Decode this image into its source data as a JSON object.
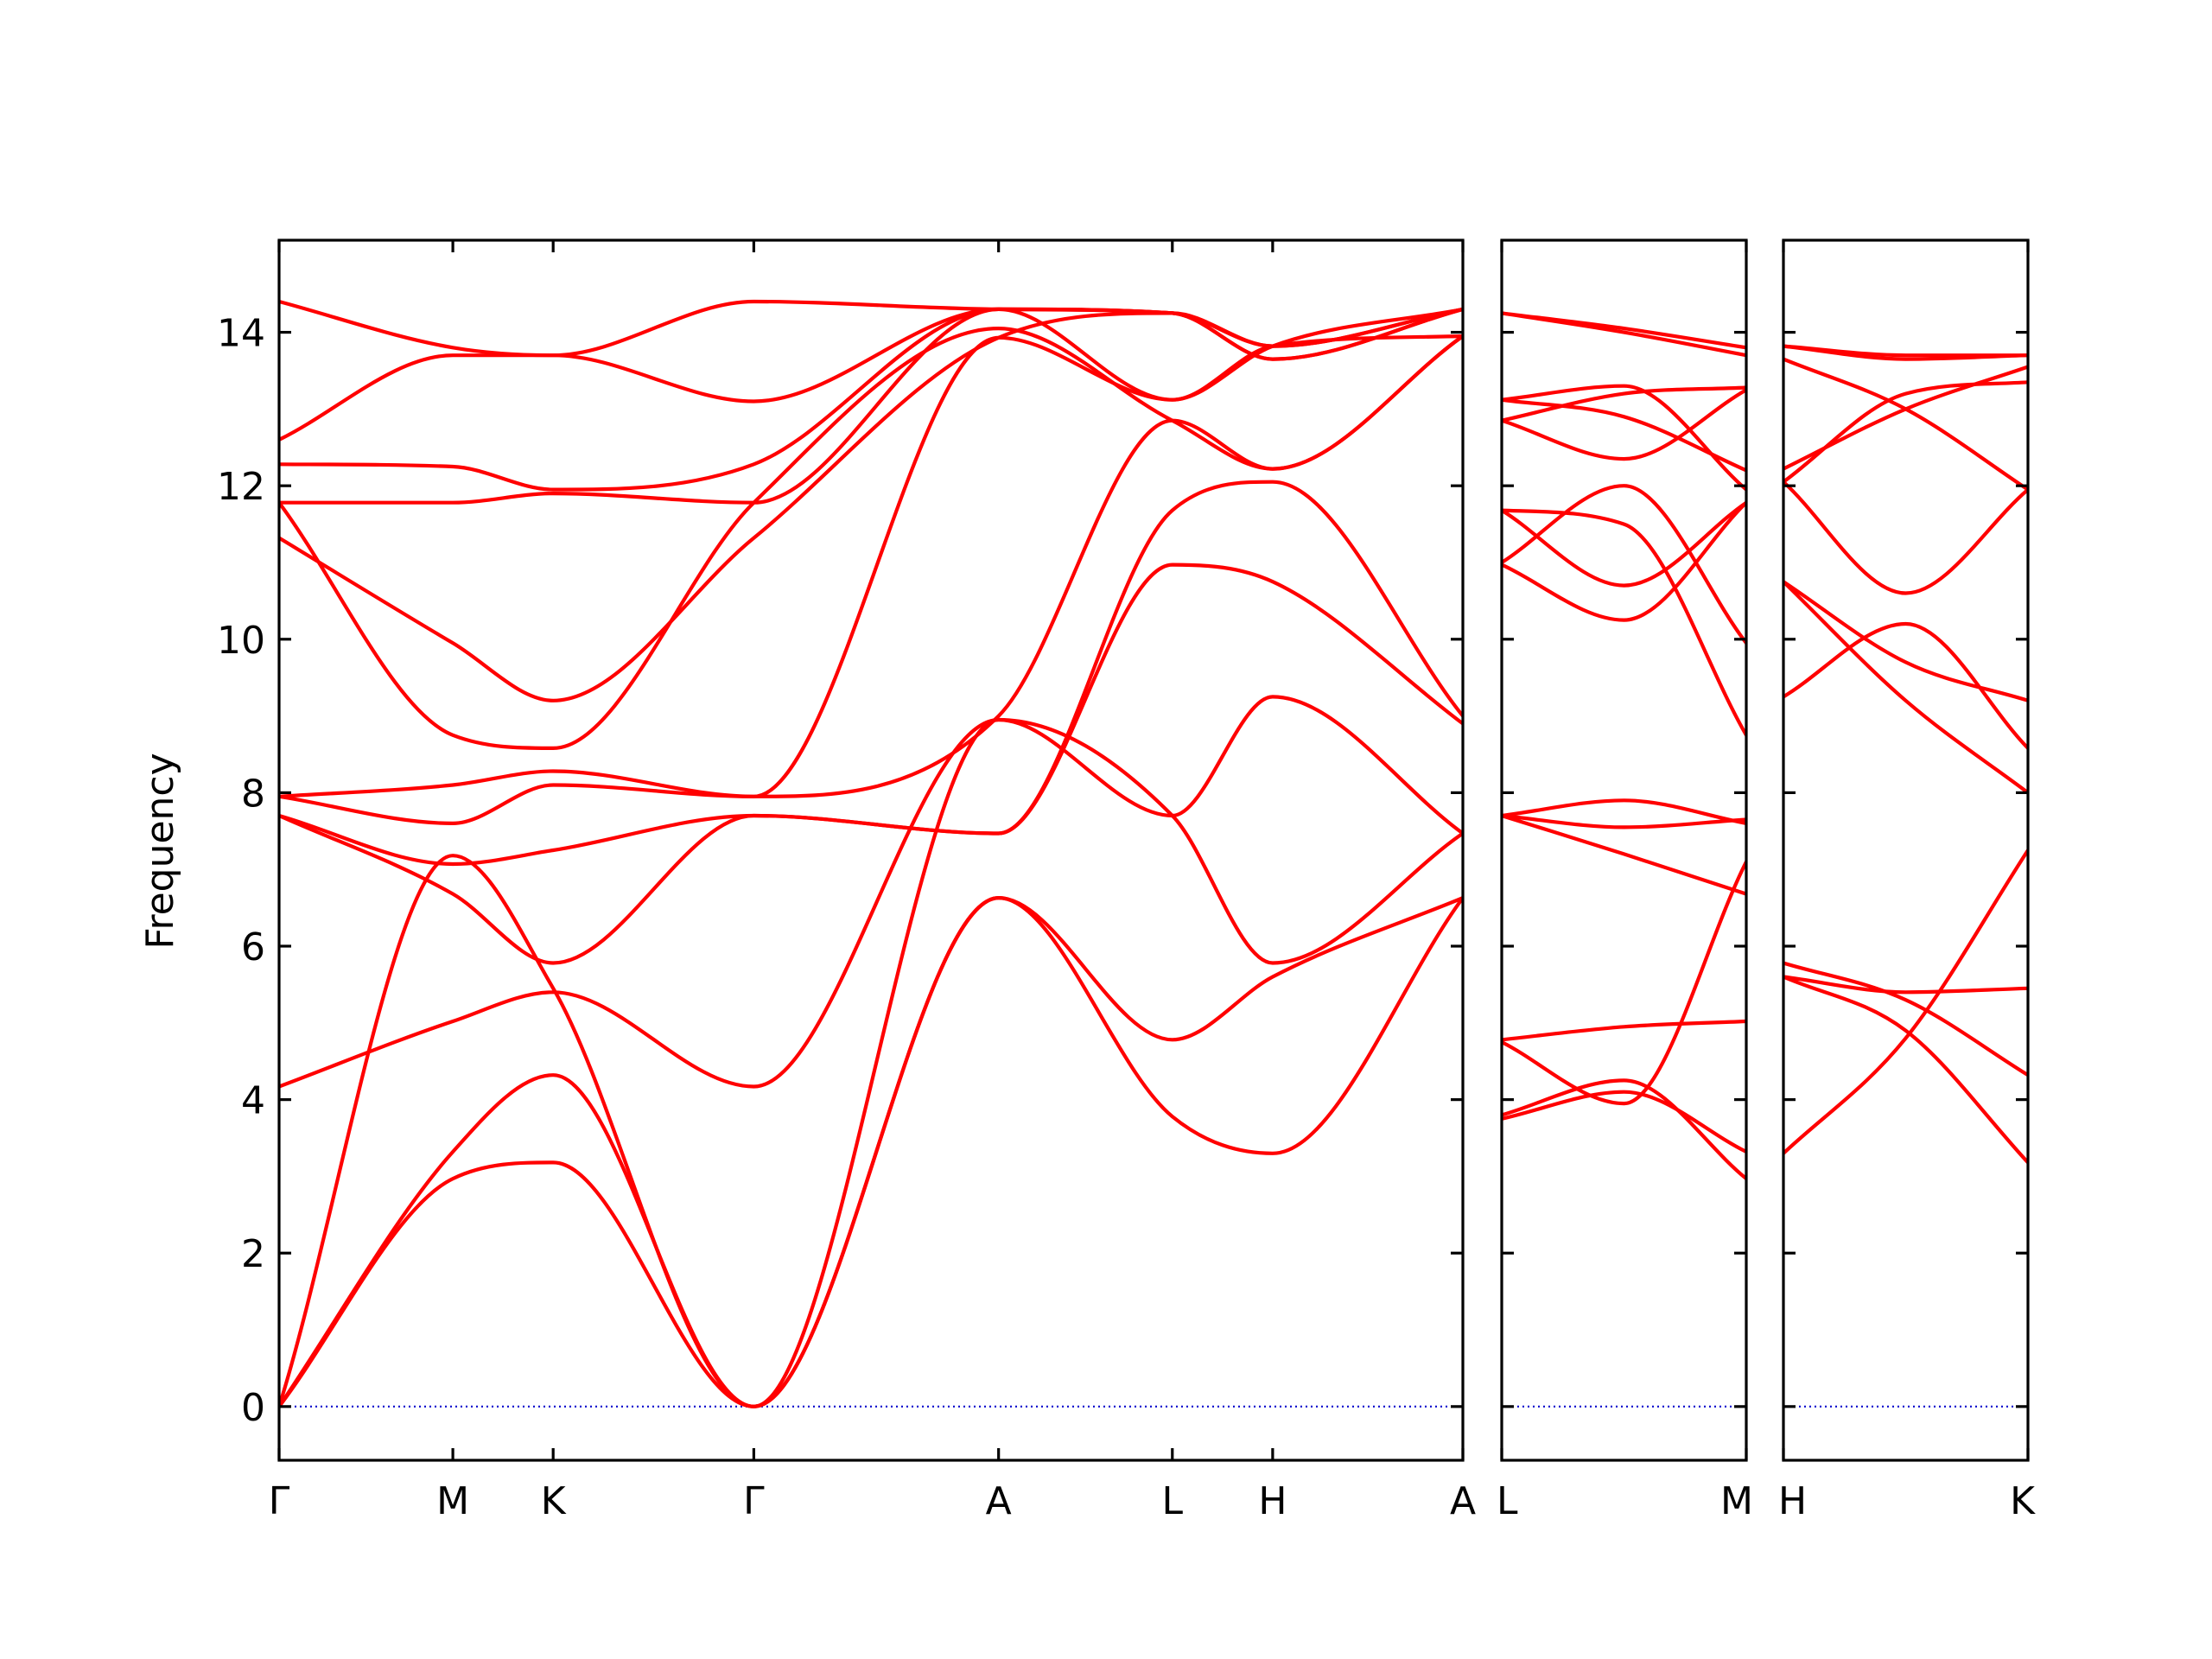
{
  "chart_data": {
    "type": "line",
    "ylabel": "Frequency",
    "ylim": [
      -0.7,
      15.2
    ],
    "yticks": [
      0,
      2,
      4,
      6,
      8,
      10,
      12,
      14
    ],
    "colors": {
      "bands": "#ff0000",
      "zero_line": "#0000cc",
      "frame": "#000000"
    },
    "grid": false,
    "legend": "none",
    "panels": [
      {
        "id": "panel-1",
        "x_labels": [
          "Γ",
          "M",
          "K",
          "Γ",
          "A",
          "L",
          "H",
          "A"
        ],
        "x_positions": [
          0,
          0.866,
          1.366,
          2.366,
          3.586,
          4.452,
          4.952,
          5.9
        ],
        "bands": [
          {
            "name": "",
            "x": [
              0,
              0.866,
              1.366,
              2.366,
              3.586,
              4.452,
              4.952,
              5.9
            ],
            "y": [
              0,
              2.97,
              3.18,
              0,
              6.63,
              3.78,
              3.3,
              6.63
            ]
          },
          {
            "name": "",
            "x": [
              0,
              0.866,
              1.366,
              2.366,
              3.586,
              4.452,
              4.952,
              5.9
            ],
            "y": [
              0,
              3.32,
              4.32,
              0,
              6.63,
              4.78,
              5.6,
              6.63
            ]
          },
          {
            "name": "",
            "x": [
              0,
              0.866,
              1.366,
              2.366,
              3.586,
              4.452,
              4.952,
              5.9
            ],
            "y": [
              0,
              7.18,
              5.45,
              0,
              8.95,
              7.7,
              5.78,
              7.47
            ]
          },
          {
            "name": "",
            "x": [
              0,
              0.866,
              1.366,
              2.366,
              3.586,
              4.452,
              4.952,
              5.9
            ],
            "y": [
              4.17,
              5.02,
              5.4,
              4.17,
              8.95,
              7.7,
              9.25,
              7.47
            ]
          },
          {
            "name": "",
            "x": [
              0,
              0.866,
              1.366,
              2.366,
              3.586,
              4.452,
              4.952,
              5.9
            ],
            "y": [
              7.7,
              6.68,
              5.78,
              7.7,
              7.47,
              10.97,
              10.75,
              8.9
            ]
          },
          {
            "name": "",
            "x": [
              0,
              0.866,
              1.366,
              2.366,
              3.586,
              4.452,
              4.952,
              5.9
            ],
            "y": [
              7.7,
              7.07,
              7.25,
              7.7,
              7.47,
              11.68,
              12.05,
              9.0
            ]
          },
          {
            "name": "",
            "x": [
              0,
              0.866,
              1.366,
              2.366,
              3.586,
              4.452,
              4.952,
              5.9
            ],
            "y": [
              7.95,
              7.6,
              8.1,
              7.95,
              9.0,
              12.85,
              12.22,
              13.95
            ]
          },
          {
            "name": "",
            "x": [
              0,
              0.866,
              1.366,
              2.366,
              3.586,
              4.452,
              4.952,
              5.9
            ],
            "y": [
              7.95,
              8.1,
              8.28,
              7.95,
              13.93,
              13.12,
              13.82,
              13.95
            ]
          },
          {
            "name": "",
            "x": [
              0,
              0.866,
              1.366,
              2.366,
              3.586,
              4.452,
              4.952,
              5.9
            ],
            "y": [
              11.32,
              9.95,
              9.2,
              11.32,
              13.93,
              14.25,
              13.82,
              14.3
            ]
          },
          {
            "name": "",
            "x": [
              0,
              0.866,
              1.366,
              2.366,
              3.586,
              4.452,
              4.952,
              5.9
            ],
            "y": [
              11.78,
              8.75,
              8.58,
              11.78,
              14.05,
              12.85,
              12.22,
              13.95
            ]
          },
          {
            "name": "",
            "x": [
              0,
              0.866,
              1.366,
              2.366,
              3.586,
              4.452,
              4.952,
              5.9
            ],
            "y": [
              11.78,
              11.78,
              11.9,
              11.78,
              14.3,
              13.12,
              13.82,
              14.3
            ]
          },
          {
            "name": "",
            "x": [
              0,
              0.866,
              1.366,
              2.366,
              3.586,
              4.452,
              4.952,
              5.9
            ],
            "y": [
              12.28,
              12.25,
              11.95,
              12.28,
              14.3,
              14.25,
              13.65,
              14.3
            ]
          },
          {
            "name": "",
            "x": [
              0,
              0.866,
              1.366,
              2.366,
              3.586,
              4.452,
              4.952,
              5.9
            ],
            "y": [
              12.6,
              13.7,
              13.7,
              13.1,
              14.3,
              14.25,
              13.65,
              14.3
            ]
          },
          {
            "name": "",
            "x": [
              0,
              0.866,
              1.366,
              2.366,
              3.586,
              4.452,
              4.952,
              5.9
            ],
            "y": [
              14.4,
              13.8,
              13.7,
              14.4,
              14.3,
              14.25,
              13.82,
              14.3
            ]
          }
        ]
      },
      {
        "id": "panel-2",
        "x_labels": [
          "L",
          "M"
        ],
        "x_positions": [
          0,
          1
        ],
        "bands": [
          {
            "name": "",
            "x": [
              0,
              0.5,
              1
            ],
            "y": [
              3.8,
              4.25,
              2.97
            ]
          },
          {
            "name": "",
            "x": [
              0,
              0.5,
              1
            ],
            "y": [
              3.75,
              4.1,
              3.32
            ]
          },
          {
            "name": "",
            "x": [
              0,
              0.5,
              1
            ],
            "y": [
              4.78,
              4.95,
              5.02
            ]
          },
          {
            "name": "",
            "x": [
              0,
              0.5,
              1
            ],
            "y": [
              4.75,
              3.95,
              7.1
            ]
          },
          {
            "name": "",
            "x": [
              0,
              0.5,
              1
            ],
            "y": [
              7.7,
              7.2,
              6.68
            ]
          },
          {
            "name": "",
            "x": [
              0,
              0.5,
              1
            ],
            "y": [
              7.7,
              7.9,
              7.6
            ]
          },
          {
            "name": "",
            "x": [
              0,
              0.5,
              1
            ],
            "y": [
              7.7,
              7.55,
              7.65
            ]
          },
          {
            "name": "",
            "x": [
              0,
              0.5,
              1
            ],
            "y": [
              10.97,
              10.25,
              11.78
            ]
          },
          {
            "name": "",
            "x": [
              0,
              0.5,
              1
            ],
            "y": [
              11.68,
              10.7,
              11.78
            ]
          },
          {
            "name": "",
            "x": [
              0,
              0.5,
              1
            ],
            "y": [
              11.68,
              11.5,
              8.75
            ]
          },
          {
            "name": "",
            "x": [
              0,
              0.5,
              1
            ],
            "y": [
              11.0,
              12.0,
              9.95
            ]
          },
          {
            "name": "",
            "x": [
              0,
              0.5,
              1
            ],
            "y": [
              12.85,
              12.35,
              13.25
            ]
          },
          {
            "name": "",
            "x": [
              0,
              0.5,
              1
            ],
            "y": [
              12.85,
              13.2,
              13.28
            ]
          },
          {
            "name": "",
            "x": [
              0,
              0.5,
              1
            ],
            "y": [
              13.12,
              13.3,
              11.95
            ]
          },
          {
            "name": "",
            "x": [
              0,
              0.5,
              1
            ],
            "y": [
              13.12,
              12.9,
              12.2
            ]
          },
          {
            "name": "",
            "x": [
              0,
              0.5,
              1
            ],
            "y": [
              14.25,
              14.0,
              13.7
            ]
          },
          {
            "name": "",
            "x": [
              0,
              0.5,
              1
            ],
            "y": [
              14.25,
              14.05,
              13.8
            ]
          }
        ]
      },
      {
        "id": "panel-3",
        "x_labels": [
          "H",
          "K"
        ],
        "x_positions": [
          0,
          1
        ],
        "bands": [
          {
            "name": "",
            "x": [
              0,
              0.5,
              1
            ],
            "y": [
              3.3,
              4.8,
              7.25
            ]
          },
          {
            "name": "",
            "x": [
              0,
              0.5,
              1
            ],
            "y": [
              5.6,
              4.9,
              3.18
            ]
          },
          {
            "name": "",
            "x": [
              0,
              0.5,
              1
            ],
            "y": [
              5.6,
              5.4,
              5.45
            ]
          },
          {
            "name": "",
            "x": [
              0,
              0.5,
              1
            ],
            "y": [
              5.78,
              5.3,
              4.32
            ]
          },
          {
            "name": "",
            "x": [
              0,
              0.5,
              1
            ],
            "y": [
              9.25,
              10.2,
              8.58
            ]
          },
          {
            "name": "",
            "x": [
              0,
              0.5,
              1
            ],
            "y": [
              10.75,
              9.7,
              9.2
            ]
          },
          {
            "name": "",
            "x": [
              0,
              0.5,
              1
            ],
            "y": [
              10.75,
              9.2,
              8.0
            ]
          },
          {
            "name": "",
            "x": [
              0,
              0.5,
              1
            ],
            "y": [
              12.05,
              10.6,
              11.95
            ]
          },
          {
            "name": "",
            "x": [
              0,
              0.5,
              1
            ],
            "y": [
              12.22,
              13.0,
              13.55
            ]
          },
          {
            "name": "",
            "x": [
              0,
              0.5,
              1
            ],
            "y": [
              12.05,
              13.2,
              13.35
            ]
          },
          {
            "name": "",
            "x": [
              0,
              0.5,
              1
            ],
            "y": [
              13.65,
              13.0,
              11.95
            ]
          },
          {
            "name": "",
            "x": [
              0,
              0.5,
              1
            ],
            "y": [
              13.82,
              13.65,
              13.7
            ]
          },
          {
            "name": "",
            "x": [
              0,
              0.5,
              1
            ],
            "y": [
              13.82,
              13.7,
              13.7
            ]
          }
        ]
      }
    ]
  }
}
